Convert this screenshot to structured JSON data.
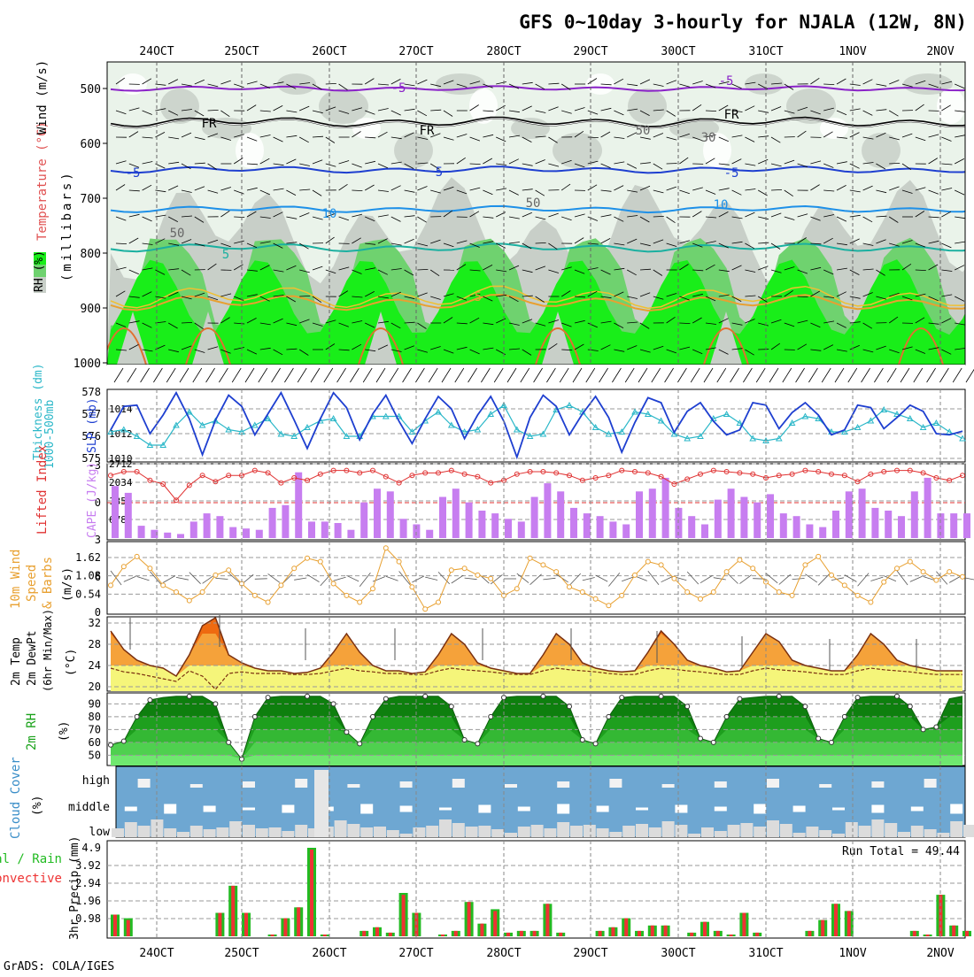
{
  "title": "GFS 0~10day 3-hourly for NJALA (12W, 8N)",
  "footer": "GrADS: COLA/IGES",
  "dates": [
    "24OCT",
    "25OCT",
    "26OCT",
    "27OCT",
    "28OCT",
    "29OCT",
    "30OCT",
    "31OCT",
    "1NOV",
    "2NOV"
  ],
  "colors": {
    "rh_light": "#c8cfc8",
    "rh_mid": "#6fd26f",
    "rh_high": "#19ee19",
    "slp": "#1e3fd0",
    "thickness": "#2ab7c8",
    "lifted": "#e03232",
    "cape": "#c77ef0",
    "wind": "#e8a030",
    "temp_dark": "#ee6a10",
    "temp_mid": "#f5a23a",
    "temp_light": "#f5f57a",
    "rh_fill": "#1aa21a",
    "cloud_bg": "#6ea7d2",
    "cloud": "#dcdcdc",
    "precip_total": "#22bb22",
    "precip_conv": "#ee3333"
  },
  "upper": {
    "ylabel_rh": "RH (%)",
    "ylabel_temp": "Temperature (°C)",
    "ylabel_wind": "Wind (m/s)",
    "ylabel_press": "(millibars)",
    "levels": [
      "500",
      "600",
      "700",
      "800",
      "900",
      "1000"
    ],
    "contour_labels": [
      "-5",
      "-5",
      "FR",
      "FR",
      "FR",
      "-5",
      "5",
      "-5",
      "10",
      "10",
      "5",
      "5",
      "50",
      "50",
      "50",
      "30"
    ]
  },
  "thick": {
    "ylabel1": "Thickness (dm)",
    "ylabel2": "1000-500mb",
    "ylabel3": "SLP (mb)",
    "left_ticks": [
      "578",
      "577",
      "576",
      "575"
    ],
    "right_ticks": [
      "1014",
      "1012",
      "1010"
    ]
  },
  "cape": {
    "ylabel_left": "Lifted Index",
    "ylabel_right": "CAPE (J/kg)",
    "left_ticks": [
      "-3",
      "0",
      "3",
      "6"
    ],
    "right_ticks": [
      "2712",
      "2034",
      "1356",
      "678"
    ]
  },
  "wind": {
    "ylabel1": "10m Wind",
    "ylabel2": "Speed",
    "ylabel3": "& Barbs",
    "units": "(m/s)",
    "ticks": [
      "1.62",
      "1.08",
      "0.54",
      "0"
    ]
  },
  "temp": {
    "ylabel1": "2m Temp",
    "ylabel2": "2m DewPt",
    "ylabel3": "(6hr Min/Max)",
    "units": "(°C)",
    "ticks": [
      "32",
      "28",
      "24",
      "20"
    ]
  },
  "rh2m": {
    "ylabel": "2m RH",
    "units": "(%)",
    "ticks": [
      "90",
      "80",
      "70",
      "60",
      "50"
    ]
  },
  "cloud": {
    "ylabel": "Cloud Cover",
    "units": "(%)",
    "levels": [
      "high",
      "middle",
      "low"
    ]
  },
  "precip": {
    "ylabel1": "Total / Rain",
    "ylabel2": "Convective",
    "ylabel3": "3hr Precip (mm)",
    "run_total": "Run Total = 49.44",
    "ticks": [
      "4.9",
      "3.92",
      "2.94",
      "1.96",
      "0.98"
    ]
  },
  "chart_data": [
    {
      "type": "line",
      "title": "1000-500mb Thickness (dm) & SLP (mb)",
      "series": [
        {
          "name": "SLP (mb)",
          "values": [
            1012.3,
            1014.2,
            1014.3,
            1012.0,
            1013.5,
            1015.3,
            1013.2,
            1010.3,
            1013.1,
            1015.1,
            1014.2,
            1011.9,
            1013.6,
            1015.3,
            1013.1,
            1010.8,
            1013.2,
            1015.3,
            1014.1,
            1011.5,
            1013.6,
            1015.1,
            1013.0,
            1011.2,
            1013.2,
            1015.0,
            1014.0,
            1011.6,
            1013.5,
            1015.0,
            1013.0,
            1010.1,
            1013.3,
            1015.1,
            1014.2,
            1011.9,
            1013.6,
            1015.0,
            1013.3,
            1010.5,
            1012.9,
            1014.9,
            1014.5,
            1012.1,
            1013.8,
            1014.5,
            1013.0,
            1011.9,
            1012.3,
            1014.5,
            1014.3,
            1012.4,
            1013.7,
            1014.5,
            1013.5,
            1011.9,
            1012.3,
            1014.3,
            1014.1,
            1012.4,
            1013.3,
            1014.3,
            1013.8,
            1012.0,
            1011.9,
            1012.2
          ]
        },
        {
          "name": "Thickness (dm)",
          "values": [
            576.2,
            576.3,
            576.0,
            575.6,
            575.6,
            576.5,
            577.1,
            576.5,
            576.7,
            576.3,
            576.2,
            576.5,
            576.8,
            576.1,
            576.0,
            576.4,
            576.7,
            576.8,
            576.0,
            576.0,
            576.9,
            576.9,
            576.9,
            576.2,
            576.7,
            577.1,
            576.5,
            576.2,
            576.3,
            577.0,
            577.4,
            576.3,
            576.0,
            576.1,
            577.2,
            577.4,
            577.1,
            576.4,
            576.1,
            576.2,
            577.1,
            577.0,
            576.7,
            576.1,
            575.9,
            576.0,
            576.8,
            577.0,
            576.6,
            575.9,
            575.8,
            575.9,
            576.6,
            576.9,
            576.8,
            576.2,
            576.2,
            576.4,
            576.7,
            577.2,
            577.0,
            576.8,
            576.4,
            576.6,
            576.2,
            575.9
          ]
        }
      ]
    },
    {
      "type": "bar",
      "title": "Lifted Index & CAPE (J/kg)",
      "series": [
        {
          "name": "CAPE (J/kg)",
          "values": [
            1900,
            1650,
            450,
            300,
            200,
            150,
            600,
            900,
            800,
            400,
            350,
            300,
            1100,
            1200,
            2400,
            600,
            600,
            550,
            300,
            1300,
            1800,
            1700,
            700,
            500,
            300,
            1500,
            1800,
            1300,
            1000,
            900,
            700,
            600,
            1500,
            2000,
            1700,
            1100,
            900,
            800,
            600,
            500,
            1700,
            1800,
            2200,
            1100,
            800,
            500,
            1400,
            1800,
            1500,
            1300,
            1600,
            900,
            800,
            500,
            400,
            1000,
            1700,
            1800,
            1100,
            1000,
            800,
            1700,
            2200,
            900,
            900,
            900
          ]
        },
        {
          "name": "Lifted Index",
          "values": [
            -2.2,
            -2.5,
            -2.5,
            -1.8,
            -1.5,
            -0.2,
            -1.4,
            -2.2,
            -1.7,
            -2.2,
            -2.2,
            -2.6,
            -2.4,
            -1.6,
            -2.0,
            -1.8,
            -2.3,
            -2.6,
            -2.6,
            -2.4,
            -2.6,
            -2.1,
            -1.6,
            -2.2,
            -2.4,
            -2.4,
            -2.6,
            -2.3,
            -2.1,
            -1.6,
            -1.8,
            -2.3,
            -2.5,
            -2.5,
            -2.4,
            -2.2,
            -1.8,
            -2.0,
            -2.2,
            -2.6,
            -2.5,
            -2.4,
            -2.1,
            -1.5,
            -1.9,
            -2.3,
            -2.6,
            -2.5,
            -2.4,
            -2.3,
            -2.0,
            -2.2,
            -2.3,
            -2.6,
            -2.5,
            -2.3,
            -2.2,
            -1.7,
            -2.3,
            -2.5,
            -2.6,
            -2.6,
            -2.4,
            -2.0,
            -1.8,
            -2.2
          ]
        }
      ]
    },
    {
      "type": "line",
      "title": "10m Wind Speed (m/s)",
      "series": [
        {
          "name": "Wind speed",
          "values": [
            0.8,
            1.35,
            1.65,
            1.3,
            0.8,
            0.6,
            0.35,
            0.6,
            1.1,
            1.25,
            0.85,
            0.5,
            0.3,
            0.8,
            1.3,
            1.6,
            1.5,
            0.85,
            0.5,
            0.3,
            0.7,
            1.9,
            1.5,
            0.75,
            0.1,
            0.3,
            1.25,
            1.3,
            1.1,
            1.0,
            0.5,
            0.7,
            1.6,
            1.4,
            1.2,
            0.75,
            0.6,
            0.4,
            0.2,
            0.5,
            1.1,
            1.5,
            1.4,
            1.0,
            0.6,
            0.4,
            0.6,
            1.2,
            1.55,
            1.3,
            0.9,
            0.6,
            0.5,
            1.4,
            1.65,
            1.1,
            0.8,
            0.5,
            0.3,
            0.9,
            1.3,
            1.5,
            1.2,
            0.95,
            1.2,
            1.05
          ]
        }
      ]
    },
    {
      "type": "area",
      "title": "2m Temp & DewPt (°C)",
      "series": [
        {
          "name": "2m Temp",
          "values": [
            30.5,
            27,
            25,
            24,
            23.5,
            22,
            26,
            31.5,
            33,
            26,
            24.5,
            23.5,
            23,
            23,
            22.5,
            22.7,
            23.5,
            26.5,
            30,
            26.5,
            24,
            23,
            23,
            22.5,
            22.8,
            26,
            30,
            28,
            24.5,
            23.5,
            23,
            22.5,
            22.5,
            26,
            30,
            28,
            24.5,
            23.5,
            23,
            22.8,
            23,
            26.5,
            30.5,
            28,
            25,
            24,
            23.5,
            22.8,
            23,
            26.5,
            30,
            28.5,
            25,
            24,
            23.5,
            23,
            23,
            26,
            30,
            28,
            25,
            24,
            23.5,
            23,
            23,
            23
          ]
        },
        {
          "name": "2m DewPt",
          "values": [
            23.5,
            22.8,
            22.5,
            22,
            21.5,
            21,
            23,
            22,
            19.5,
            22.5,
            22.8,
            22.5,
            22.5,
            22.5,
            22.3,
            22.3,
            22.5,
            23,
            23.5,
            23,
            22.8,
            22.5,
            22.5,
            22.3,
            22.3,
            23,
            23.5,
            23.2,
            23,
            22.8,
            22.5,
            22.3,
            22.3,
            23,
            23.5,
            23.2,
            23,
            22.8,
            22.5,
            22.3,
            22.3,
            23,
            23.5,
            23.3,
            23,
            22.8,
            22.5,
            22.3,
            22.3,
            23,
            23.5,
            23.2,
            23,
            22.8,
            22.5,
            22.3,
            22.3,
            23,
            23.5,
            23.2,
            23,
            22.8,
            22.5,
            22.3,
            22.3,
            22.3
          ]
        }
      ]
    },
    {
      "type": "area",
      "title": "2m RH (%)",
      "series": [
        {
          "name": "2m RH",
          "values": [
            58,
            61,
            80,
            93,
            95,
            96,
            96,
            96,
            90,
            60,
            47,
            80,
            95,
            96,
            96,
            96,
            96,
            90,
            68,
            59,
            80,
            94,
            96,
            96,
            96,
            96,
            88,
            62,
            59,
            80,
            95,
            96,
            96,
            96,
            96,
            88,
            62,
            59,
            80,
            95,
            96,
            96,
            96,
            96,
            88,
            63,
            60,
            80,
            94,
            95,
            96,
            96,
            96,
            88,
            63,
            60,
            80,
            95,
            96,
            96,
            96,
            88,
            70,
            72,
            94,
            96
          ]
        }
      ]
    },
    {
      "type": "bar",
      "title": "3hr Precip (mm)",
      "series": [
        {
          "name": "Total",
          "values": [
            1.2,
            1.0,
            0,
            0,
            0,
            0,
            0,
            0,
            1.3,
            2.8,
            1.3,
            0,
            0.1,
            1.0,
            1.6,
            4.9,
            0.1,
            0,
            0,
            0.3,
            0.5,
            0.2,
            2.4,
            1.3,
            0,
            0.1,
            0.3,
            1.9,
            0.7,
            1.5,
            0.2,
            0.3,
            0.3,
            1.8,
            0.2,
            0,
            0,
            0.3,
            0.5,
            1.0,
            0.3,
            0.6,
            0.6,
            0,
            0.2,
            0.8,
            0.3,
            0.1,
            1.3,
            0.2,
            0,
            0,
            0,
            0.3,
            0.9,
            1.8,
            1.4,
            0,
            0,
            0,
            0,
            0.3,
            0.1,
            2.3,
            0.6,
            0.3
          ]
        },
        {
          "name": "Convective",
          "values": [
            1.2,
            0.9,
            0,
            0,
            0,
            0,
            0,
            0,
            1.3,
            2.8,
            1.3,
            0,
            0.1,
            1.0,
            1.6,
            4.8,
            0.1,
            0,
            0,
            0.3,
            0.5,
            0.2,
            2.3,
            1.3,
            0,
            0.1,
            0.3,
            1.9,
            0.7,
            1.4,
            0.2,
            0.3,
            0.3,
            1.8,
            0.2,
            0,
            0,
            0.3,
            0.5,
            1.0,
            0.3,
            0.6,
            0.6,
            0,
            0.2,
            0.8,
            0.3,
            0.1,
            1.3,
            0.2,
            0,
            0,
            0,
            0.3,
            0.9,
            1.8,
            1.4,
            0,
            0,
            0,
            0,
            0.3,
            0.1,
            2.3,
            0.6,
            0.3
          ]
        }
      ]
    }
  ]
}
